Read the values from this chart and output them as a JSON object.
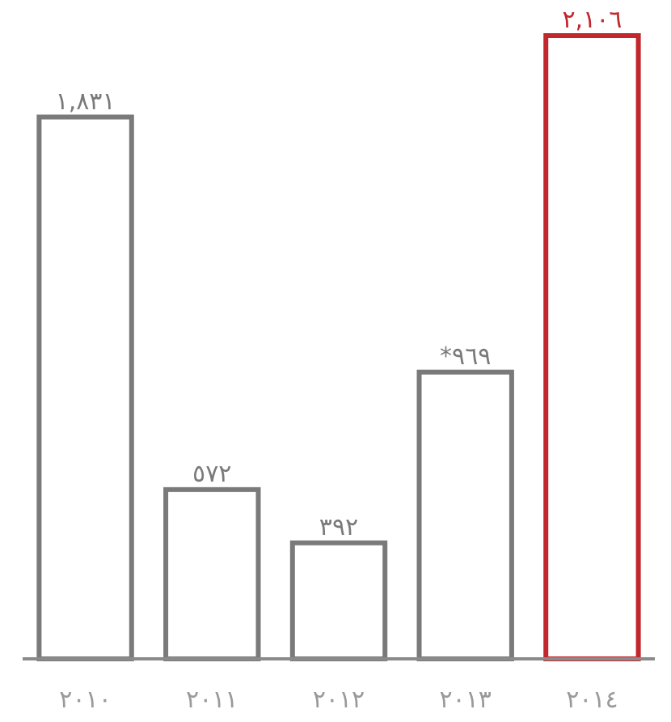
{
  "chart_data": {
    "type": "bar",
    "categories": [
      "٢٠١٠",
      "٢٠١١",
      "٢٠١٢",
      "٢٠١٣",
      "٢٠١٤"
    ],
    "values": [
      1831,
      572,
      392,
      969,
      2106
    ],
    "value_labels": [
      "١,٨٣١",
      "٥٧٢",
      "٣٩٢",
      "*٩٦٩",
      "٢,١٠٦"
    ],
    "colors": [
      "#7a7a7a",
      "#7a7a7a",
      "#7a7a7a",
      "#7a7a7a",
      "#c1272d"
    ]
  }
}
